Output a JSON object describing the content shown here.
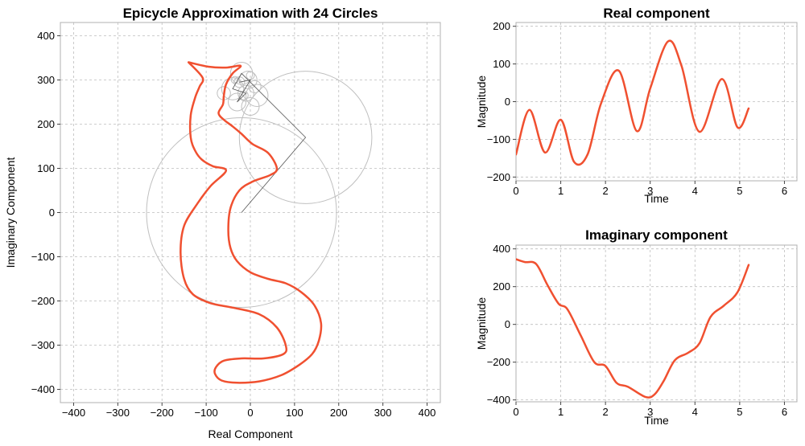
{
  "chart_data": [
    {
      "type": "line",
      "id": "main",
      "title": "Epicycle Approximation with 24 Circles",
      "xlabel": "Real Component",
      "ylabel": "Imaginary Component",
      "xlim": [
        -430,
        430
      ],
      "ylim": [
        -430,
        430
      ],
      "xticks": [
        -400,
        -300,
        -200,
        -100,
        0,
        100,
        200,
        300,
        400
      ],
      "yticks": [
        -400,
        -300,
        -200,
        -100,
        0,
        100,
        200,
        300,
        400
      ],
      "colors": {
        "curve": "#f05030",
        "circles": "#bfbfbf"
      },
      "curve": [
        [
          -140,
          340
        ],
        [
          -95,
          330
        ],
        [
          -55,
          328
        ],
        [
          -22,
          332
        ],
        [
          -40,
          315
        ],
        [
          -55,
          290
        ],
        [
          -60,
          265
        ],
        [
          -62,
          245
        ],
        [
          -72,
          225
        ],
        [
          -60,
          210
        ],
        [
          -40,
          195
        ],
        [
          -20,
          178
        ],
        [
          5,
          155
        ],
        [
          40,
          135
        ],
        [
          60,
          100
        ],
        [
          45,
          85
        ],
        [
          5,
          70
        ],
        [
          -25,
          50
        ],
        [
          -45,
          10
        ],
        [
          -50,
          -40
        ],
        [
          -45,
          -80
        ],
        [
          -30,
          -110
        ],
        [
          0,
          -135
        ],
        [
          40,
          -150
        ],
        [
          80,
          -160
        ],
        [
          115,
          -180
        ],
        [
          145,
          -210
        ],
        [
          160,
          -250
        ],
        [
          155,
          -290
        ],
        [
          140,
          -320
        ],
        [
          110,
          -345
        ],
        [
          70,
          -368
        ],
        [
          20,
          -382
        ],
        [
          -30,
          -385
        ],
        [
          -65,
          -380
        ],
        [
          -80,
          -365
        ],
        [
          -78,
          -350
        ],
        [
          -60,
          -335
        ],
        [
          -20,
          -330
        ],
        [
          30,
          -330
        ],
        [
          75,
          -320
        ],
        [
          80,
          -300
        ],
        [
          60,
          -260
        ],
        [
          20,
          -230
        ],
        [
          -40,
          -215
        ],
        [
          -90,
          -205
        ],
        [
          -130,
          -185
        ],
        [
          -150,
          -150
        ],
        [
          -158,
          -90
        ],
        [
          -150,
          -30
        ],
        [
          -120,
          20
        ],
        [
          -90,
          60
        ],
        [
          -55,
          95
        ],
        [
          -85,
          105
        ],
        [
          -110,
          120
        ],
        [
          -125,
          140
        ],
        [
          -135,
          170
        ],
        [
          -135,
          220
        ],
        [
          -125,
          260
        ],
        [
          -115,
          285
        ],
        [
          -108,
          305
        ],
        [
          -140,
          340
        ]
      ],
      "circles": [
        [
          -20,
          0,
          215
        ],
        [
          125,
          170,
          150
        ],
        [
          -20,
          315,
          25
        ],
        [
          -5,
          300,
          20
        ],
        [
          -40,
          280,
          25
        ],
        [
          -10,
          270,
          18
        ],
        [
          15,
          265,
          25
        ],
        [
          -30,
          250,
          20
        ],
        [
          0,
          240,
          20
        ],
        [
          -60,
          270,
          15
        ],
        [
          -25,
          295,
          12
        ],
        [
          10,
          285,
          14
        ],
        [
          -15,
          265,
          10
        ],
        [
          -35,
          300,
          8
        ],
        [
          0,
          310,
          9
        ]
      ],
      "arms": [
        [
          -20,
          0
        ],
        [
          125,
          170
        ],
        [
          -20,
          315
        ],
        [
          -40,
          280
        ],
        [
          -10,
          270
        ],
        [
          -30,
          250
        ],
        [
          0,
          300
        ],
        [
          -25,
          295
        ]
      ]
    },
    {
      "type": "line",
      "id": "real",
      "title": "Real component",
      "xlabel": "Time",
      "ylabel": "Magnitude",
      "xlim": [
        0,
        6.28
      ],
      "ylim": [
        -210,
        210
      ],
      "xticks": [
        0,
        1,
        2,
        3,
        4,
        5,
        6
      ],
      "yticks": [
        -200,
        -100,
        0,
        100,
        200
      ],
      "colors": {
        "curve": "#f05030"
      },
      "x": [
        0,
        0.3,
        0.65,
        1.0,
        1.3,
        1.6,
        1.9,
        2.3,
        2.7,
        3.0,
        3.4,
        3.7,
        4.1,
        4.6,
        4.95,
        5.2
      ],
      "y": [
        -140,
        -22,
        -135,
        -48,
        -160,
        -140,
        -5,
        82,
        -78,
        35,
        160,
        95,
        -80,
        60,
        -68,
        -18
      ]
    },
    {
      "type": "line",
      "id": "imag",
      "title": "Imaginary component",
      "xlabel": "Time",
      "ylabel": "Magnitude",
      "xlim": [
        0,
        6.28
      ],
      "ylim": [
        -410,
        420
      ],
      "xticks": [
        0,
        1,
        2,
        3,
        4,
        5,
        6
      ],
      "yticks": [
        -400,
        -200,
        0,
        200,
        400
      ],
      "colors": {
        "curve": "#f05030"
      },
      "x": [
        0,
        0.2,
        0.45,
        0.7,
        0.95,
        1.15,
        1.45,
        1.75,
        2.0,
        2.25,
        2.5,
        2.9,
        3.1,
        3.3,
        3.55,
        3.85,
        4.1,
        4.35,
        4.65,
        4.95,
        5.2
      ],
      "y": [
        345,
        330,
        320,
        210,
        110,
        80,
        -60,
        -200,
        -220,
        -310,
        -330,
        -385,
        -370,
        -300,
        -190,
        -150,
        -100,
        40,
        100,
        170,
        315
      ]
    }
  ]
}
